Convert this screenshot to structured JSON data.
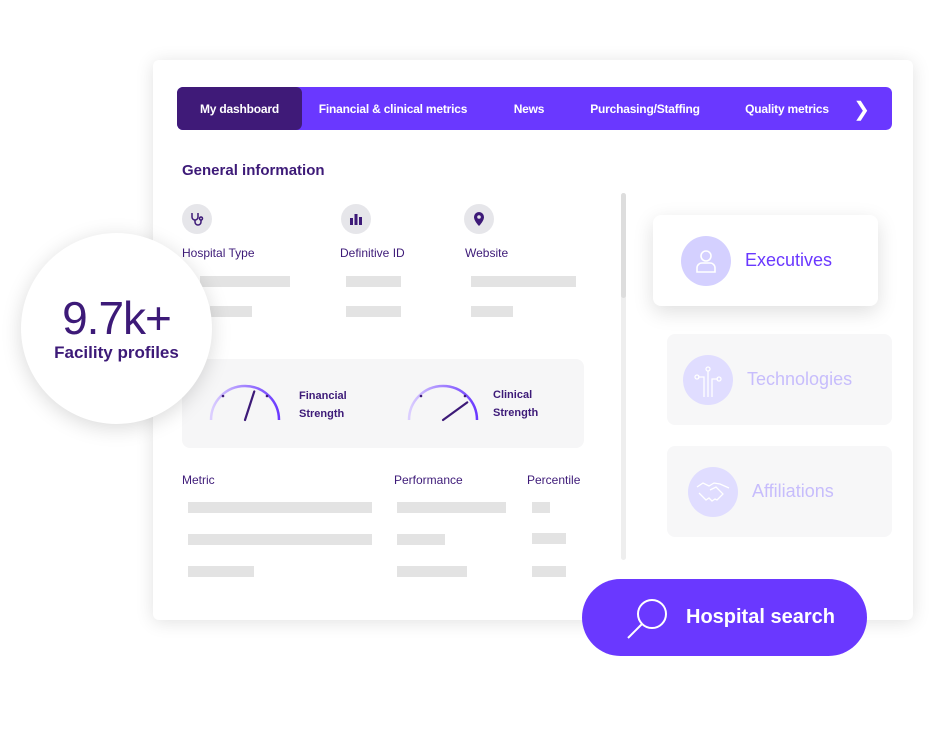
{
  "nav": {
    "tabs": [
      "My dashboard",
      "Financial & clinical metrics",
      "News",
      "Purchasing/Staffing",
      "Quality metrics"
    ],
    "active": 0,
    "next_icon": "chevron-right-icon"
  },
  "general": {
    "title": "General information",
    "fields": [
      {
        "label": "Hospital Type",
        "icon": "stethoscope-icon"
      },
      {
        "label": "Definitive ID",
        "icon": "bar-chart-icon"
      },
      {
        "label": "Website",
        "icon": "map-pin-icon"
      }
    ]
  },
  "gauges": [
    {
      "label_1": "Financial",
      "label_2": "Strength",
      "level": 0.6
    },
    {
      "label_1": "Clinical",
      "label_2": "Strength",
      "level": 0.8
    }
  ],
  "table": {
    "headers": [
      "Metric",
      "Performance",
      "Percentile"
    ]
  },
  "side": [
    {
      "label": "Executives",
      "icon": "person-icon"
    },
    {
      "label": "Technologies",
      "icon": "circuit-icon"
    },
    {
      "label": "Affiliations",
      "icon": "handshake-icon"
    }
  ],
  "badge": {
    "value": "9.7k+",
    "label": "Facility profiles"
  },
  "search": {
    "label": "Hospital search",
    "icon": "search-icon"
  },
  "colors": {
    "primary": "#6a38ff",
    "dark": "#3f1a78",
    "light": "#d4d0ff"
  }
}
